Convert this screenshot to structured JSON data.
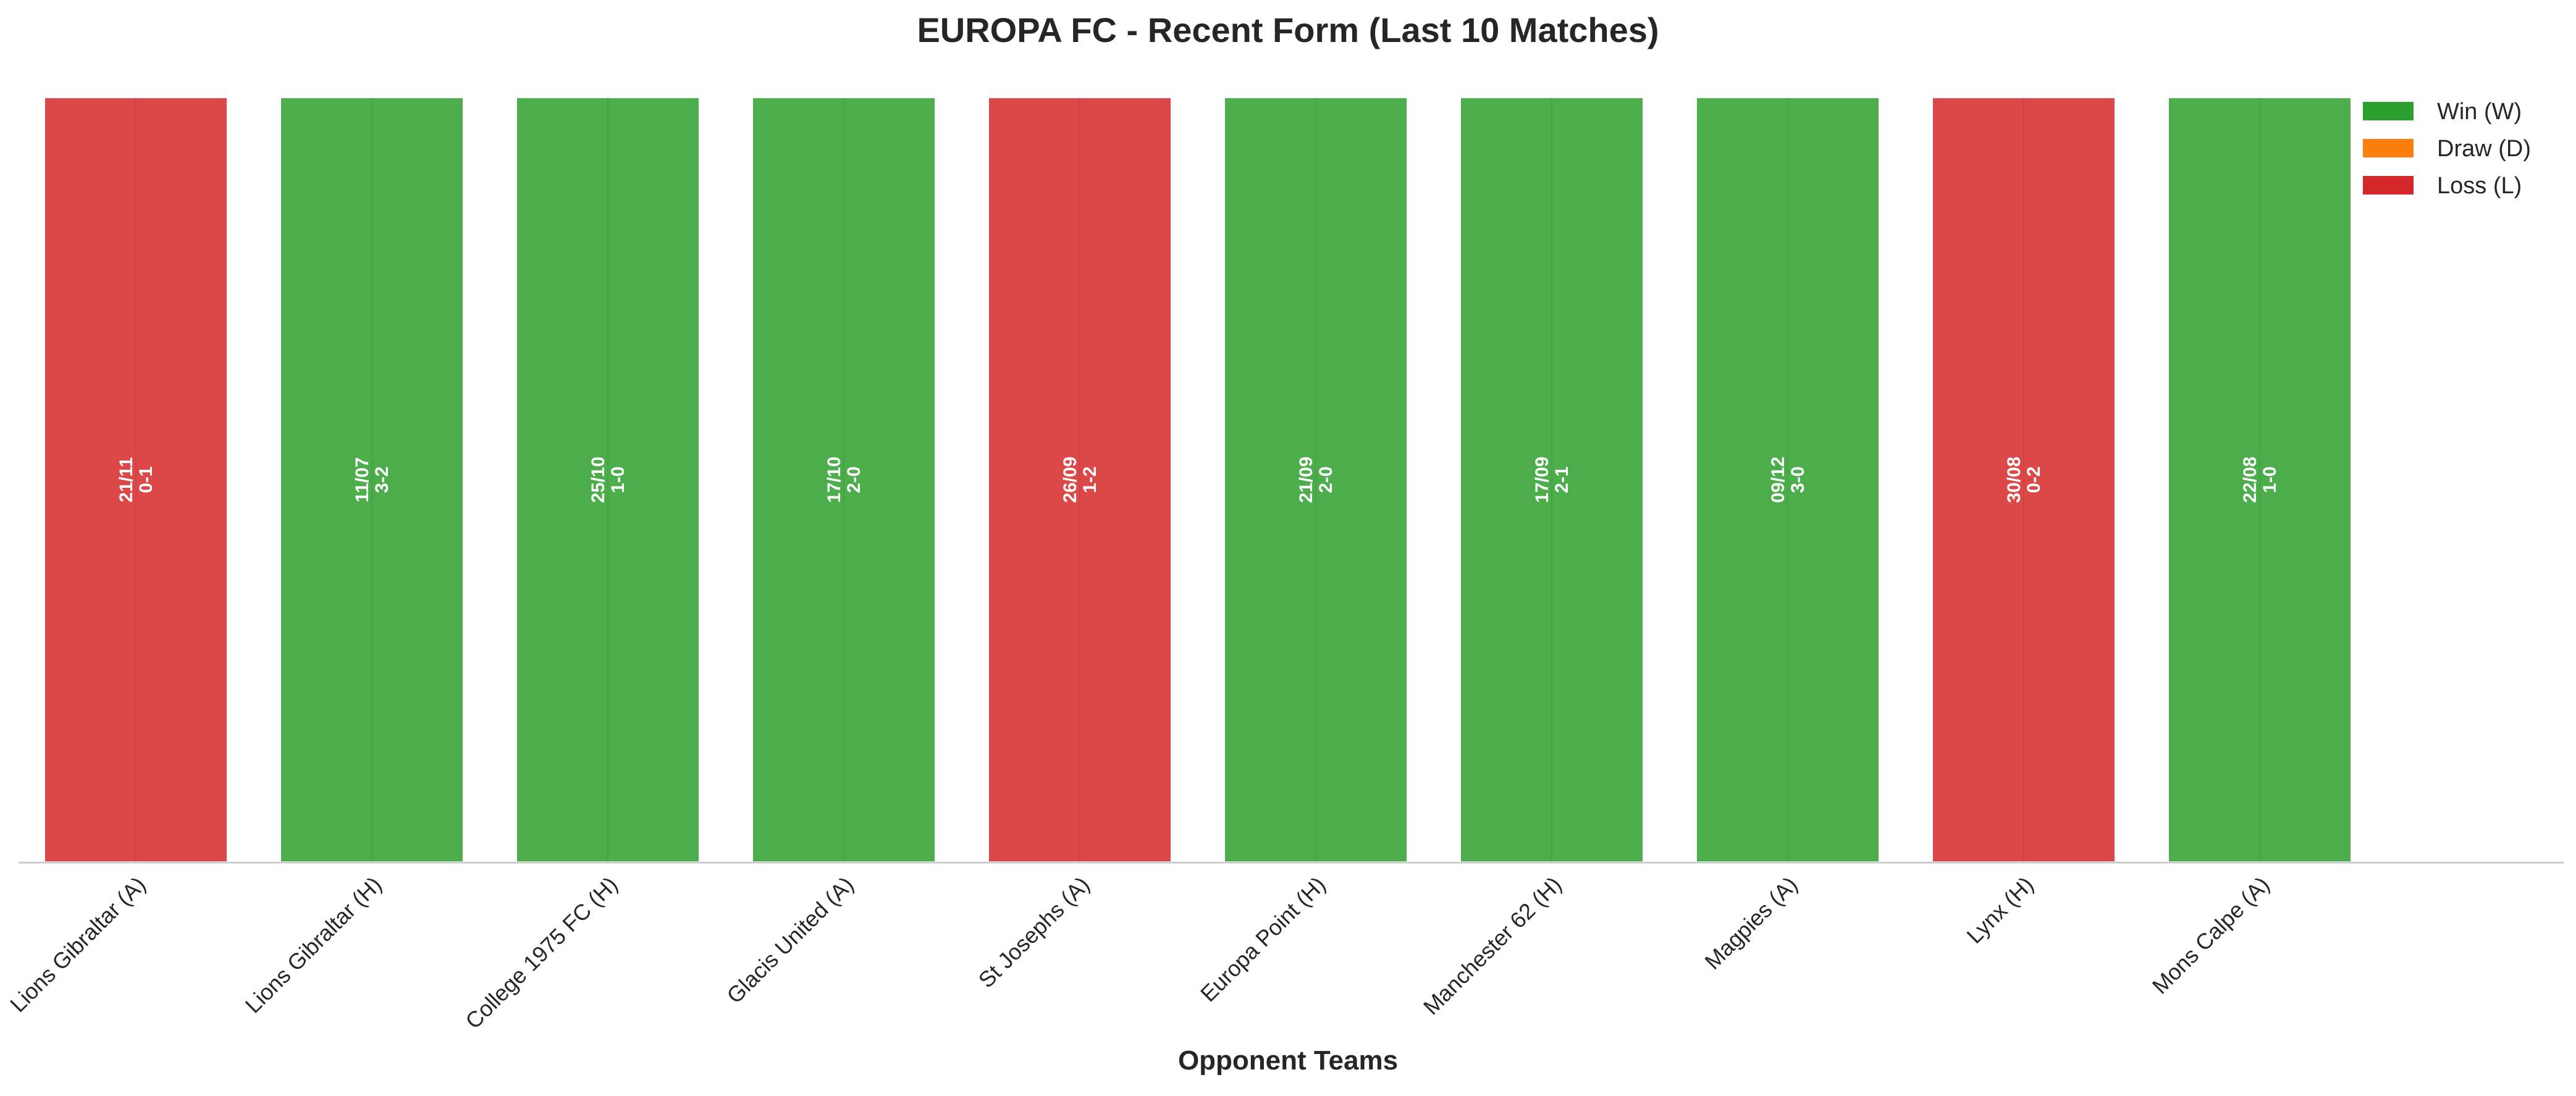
{
  "chart_data": {
    "type": "bar",
    "title": "EUROPA FC - Recent Form (Last 10 Matches)",
    "xlabel": "Opponent Teams",
    "ylabel": "",
    "ylim": [
      0,
      1
    ],
    "grid": false,
    "legend_placement": "top-right",
    "categories": [
      "Lions Gibraltar (A)",
      "Lions Gibraltar (H)",
      "College 1975 FC (H)",
      "Glacis United (A)",
      "St Josephs (A)",
      "Europa Point (H)",
      "Manchester 62 (H)",
      "Magpies (A)",
      "Lynx (H)",
      "Mons Calpe (A)"
    ],
    "values": [
      1,
      1,
      1,
      1,
      1,
      1,
      1,
      1,
      1,
      1
    ],
    "results": [
      "L",
      "W",
      "W",
      "W",
      "L",
      "W",
      "W",
      "W",
      "L",
      "W"
    ],
    "dates": [
      "21/11",
      "11/07",
      "25/10",
      "17/10",
      "26/09",
      "21/09",
      "17/09",
      "09/12",
      "30/08",
      "22/08"
    ],
    "scores": [
      "0-1",
      "3-2",
      "1-0",
      "2-0",
      "1-2",
      "2-0",
      "2-1",
      "3-0",
      "0-2",
      "1-0"
    ],
    "legend": [
      {
        "key": "W",
        "label": "Win (W)",
        "color": "#2ca02c"
      },
      {
        "key": "D",
        "label": "Draw (D)",
        "color": "#ff7f0e"
      },
      {
        "key": "L",
        "label": "Loss (L)",
        "color": "#d62728"
      }
    ]
  }
}
